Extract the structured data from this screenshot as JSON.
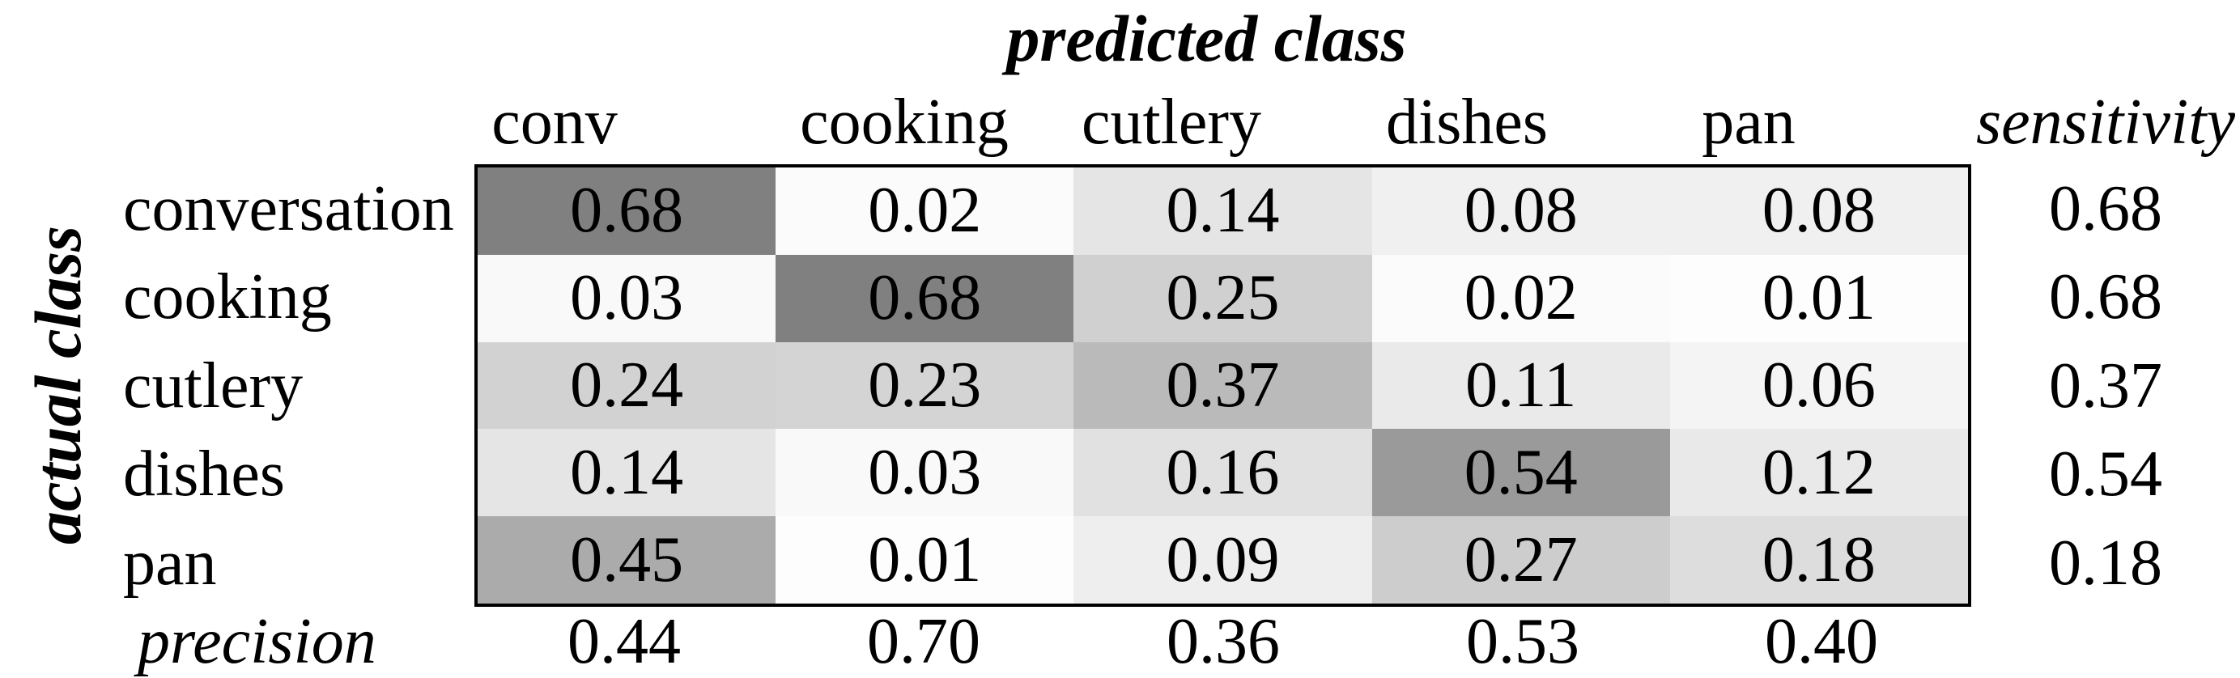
{
  "chart_data": {
    "type": "heatmap",
    "title": "predicted class",
    "row_axis_label": "actual class",
    "col_headers": [
      "conv",
      "cooking",
      "cutlery",
      "dishes",
      "pan"
    ],
    "row_labels": [
      "conversation",
      "cooking",
      "cutlery",
      "dishes",
      "pan"
    ],
    "sensitivity_header": "sensitivity",
    "precision_label": "precision",
    "matrix": [
      [
        0.68,
        0.02,
        0.14,
        0.08,
        0.08
      ],
      [
        0.03,
        0.68,
        0.25,
        0.02,
        0.01
      ],
      [
        0.24,
        0.23,
        0.37,
        0.11,
        0.06
      ],
      [
        0.14,
        0.03,
        0.16,
        0.54,
        0.12
      ],
      [
        0.45,
        0.01,
        0.09,
        0.27,
        0.18
      ]
    ],
    "sensitivity": [
      0.68,
      0.68,
      0.37,
      0.54,
      0.18
    ],
    "precision": [
      0.44,
      0.7,
      0.36,
      0.53,
      0.4
    ],
    "value_decimals": 2,
    "layout": {
      "grid_lines": false,
      "cell_shading": "grayscale, darker = higher value",
      "sensitivity_column_position": "right, outside border",
      "precision_row_position": "bottom, outside border"
    },
    "colors": {
      "background": "#ffffff",
      "text": "#000000",
      "border": "#000000",
      "max_cell_bg": "#808080",
      "min_cell_bg": "#fdfdfd",
      "gray_slope": 187
    }
  }
}
